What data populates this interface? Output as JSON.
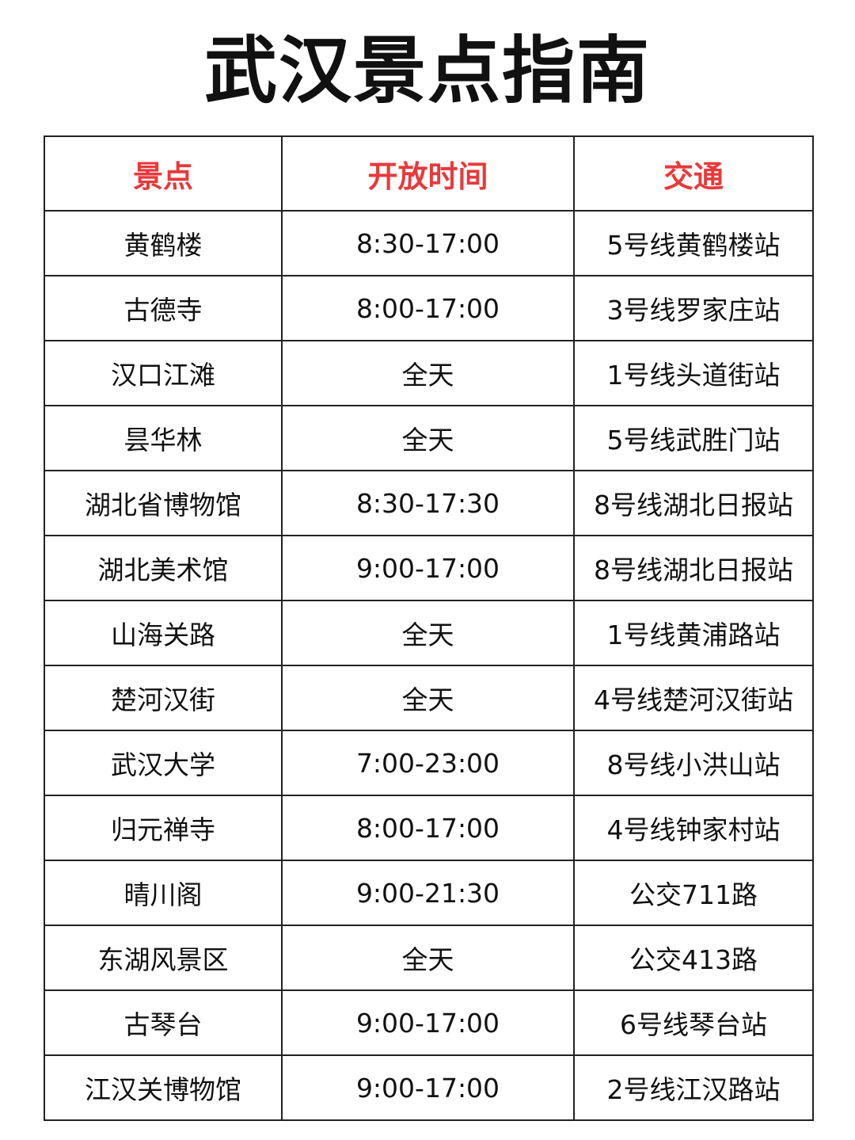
{
  "title": "武汉景点指南",
  "accent_color": "#e8393a",
  "table": {
    "headers": [
      "景点",
      "开放时间",
      "交通"
    ],
    "rows": [
      [
        "黄鹤楼",
        "8:30-17:00",
        "5号线黄鹤楼站"
      ],
      [
        "古德寺",
        "8:00-17:00",
        "3号线罗家庄站"
      ],
      [
        "汉口江滩",
        "全天",
        "1号线头道街站"
      ],
      [
        "昙华林",
        "全天",
        "5号线武胜门站"
      ],
      [
        "湖北省博物馆",
        "8:30-17:30",
        "8号线湖北日报站"
      ],
      [
        "湖北美术馆",
        "9:00-17:00",
        "8号线湖北日报站"
      ],
      [
        "山海关路",
        "全天",
        "1号线黄浦路站"
      ],
      [
        "楚河汉街",
        "全天",
        "4号线楚河汉街站"
      ],
      [
        "武汉大学",
        "7:00-23:00",
        "8号线小洪山站"
      ],
      [
        "归元禅寺",
        "8:00-17:00",
        "4号线钟家村站"
      ],
      [
        "晴川阁",
        "9:00-21:30",
        "公交711路"
      ],
      [
        "东湖风景区",
        "全天",
        "公交413路"
      ],
      [
        "古琴台",
        "9:00-17:00",
        "6号线琴台站"
      ],
      [
        "江汉关博物馆",
        "9:00-17:00",
        "2号线江汉路站"
      ]
    ]
  }
}
